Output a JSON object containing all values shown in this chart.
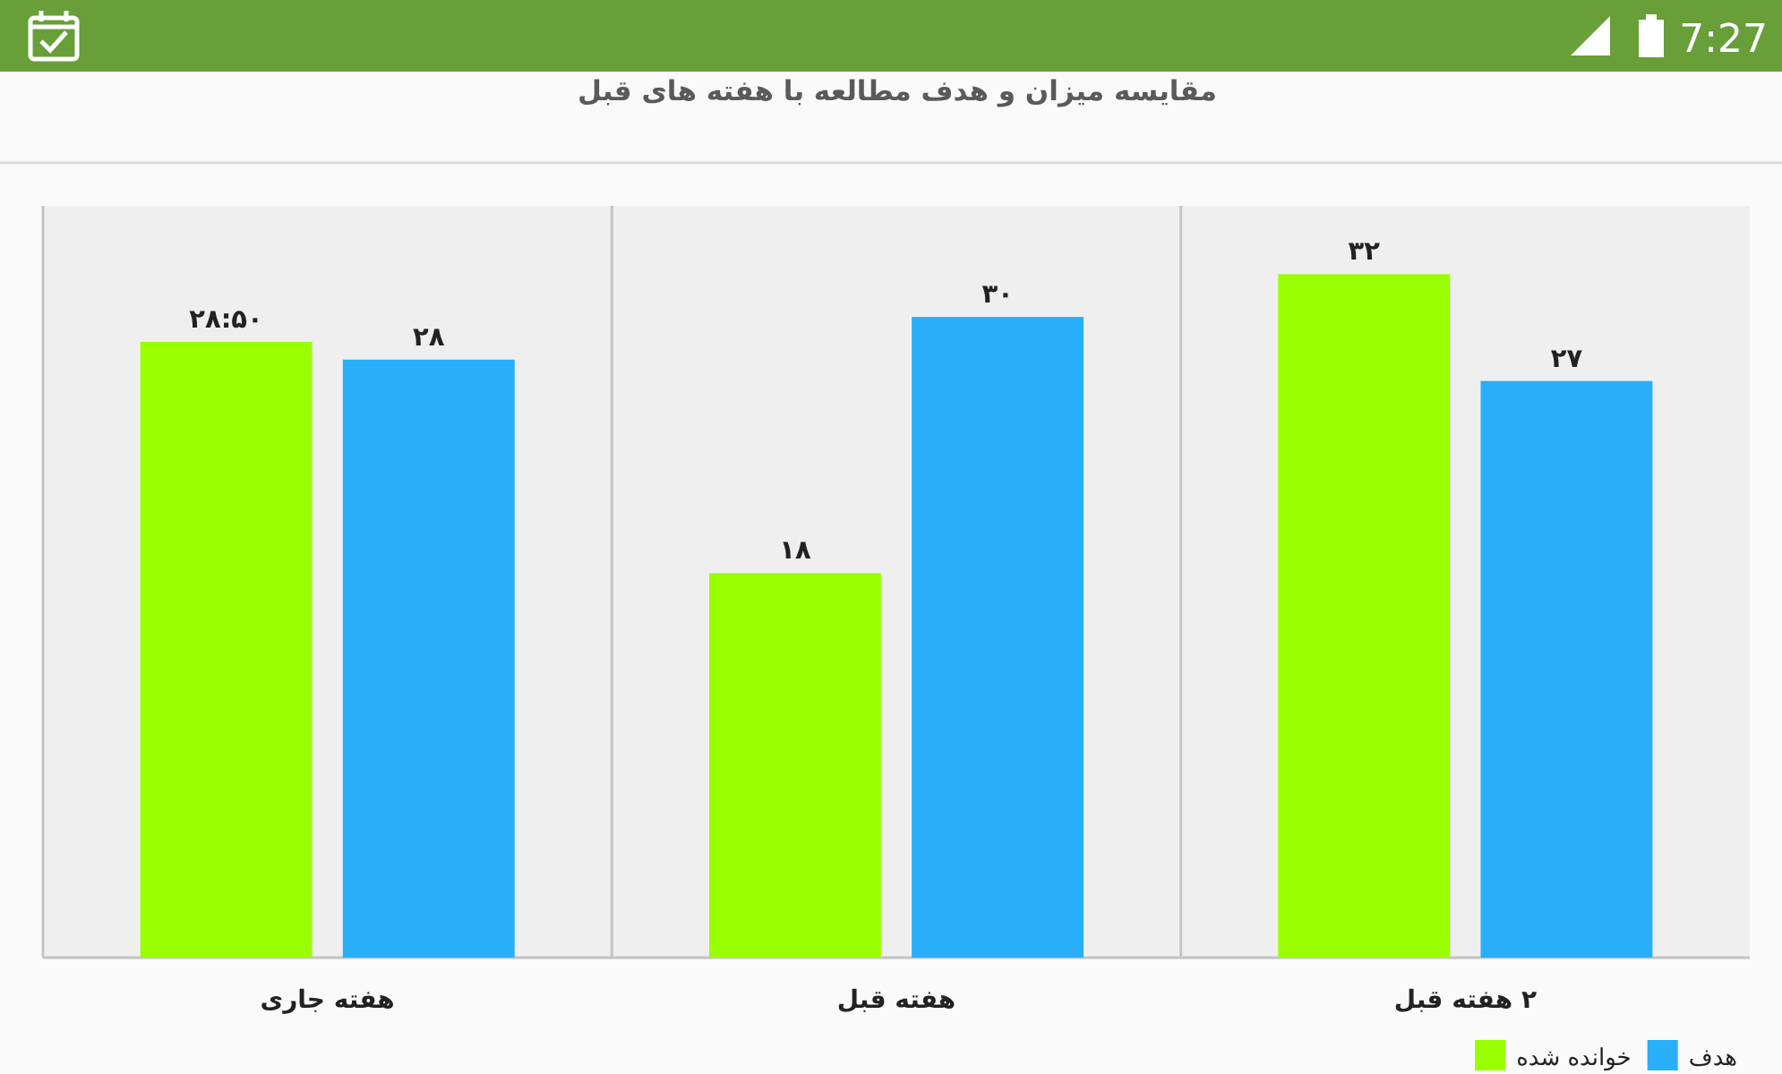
{
  "chart_data": {
    "type": "bar",
    "title": "مقایسه میزان و هدف مطالعه با هفته های قبل",
    "categories": [
      "هفته جاری",
      "هفته قبل",
      "۲ هفته قبل"
    ],
    "series": [
      {
        "name": "خوانده شده",
        "color": "#99ff00",
        "values": [
          28.83,
          18,
          32
        ],
        "value_labels": [
          "۲۸:۵۰",
          "۱۸",
          "۳۲"
        ]
      },
      {
        "name": "هدف",
        "color": "#29aff9",
        "values": [
          28,
          30,
          27
        ],
        "value_labels": [
          "۲۸",
          "۳۰",
          "۲۷"
        ]
      }
    ],
    "ylim": [
      0,
      35.2
    ],
    "tick_labels": "x",
    "legend": "bottom right",
    "annotations": [
      "7:27"
    ]
  }
}
